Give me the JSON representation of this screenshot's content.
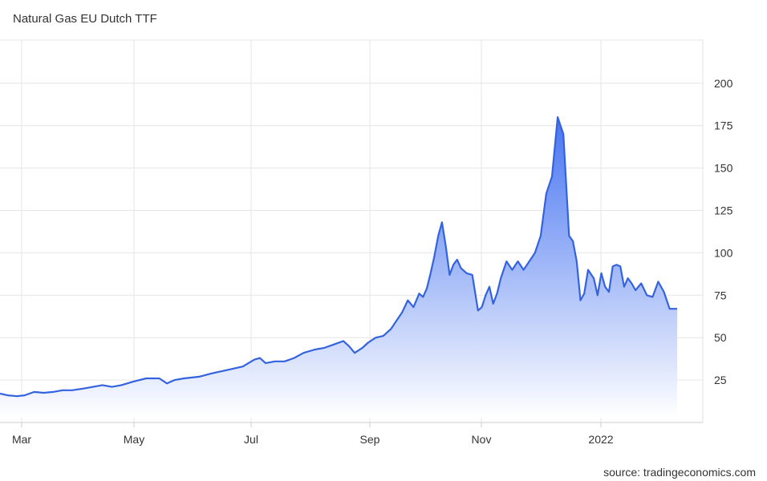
{
  "chart_title": "Natural Gas EU Dutch TTF",
  "source": "source: tradingeconomics.com",
  "colors": {
    "line": "#3463e0",
    "fill_top": "#3f6ef0",
    "fill_bottom": "#ffffff",
    "grid": "#e6e6e6"
  },
  "chart_data": {
    "type": "area",
    "title": "Natural Gas EU Dutch TTF",
    "xlabel": "",
    "ylabel": "",
    "ylim": [
      0,
      225
    ],
    "y_ticks": [
      25,
      50,
      75,
      100,
      125,
      150,
      175,
      200
    ],
    "x_tick_labels": [
      "Mar",
      "May",
      "Jul",
      "Sep",
      "Nov",
      "2022"
    ],
    "x_range": [
      "2021-02-20",
      "2022-02-12"
    ],
    "grid": true,
    "y_axis_side": "right",
    "legend": "none",
    "series": [
      {
        "x": [
          "2021-02-20",
          "2021-02-24",
          "2021-03-01",
          "2021-03-05",
          "2021-03-10",
          "2021-03-15",
          "2021-03-20",
          "2021-03-25",
          "2021-03-30",
          "2021-04-05",
          "2021-04-10",
          "2021-04-15",
          "2021-04-20",
          "2021-04-25",
          "2021-05-01",
          "2021-05-08",
          "2021-05-15",
          "2021-05-19",
          "2021-05-23",
          "2021-05-28",
          "2021-06-05",
          "2021-06-12",
          "2021-06-20",
          "2021-06-28",
          "2021-07-01",
          "2021-07-04",
          "2021-07-07",
          "2021-07-10",
          "2021-07-15",
          "2021-07-20",
          "2021-07-25",
          "2021-07-30",
          "2021-08-05",
          "2021-08-10",
          "2021-08-15",
          "2021-08-20",
          "2021-08-23",
          "2021-08-26",
          "2021-08-30",
          "2021-09-02",
          "2021-09-06",
          "2021-09-10",
          "2021-09-14",
          "2021-09-17",
          "2021-09-20",
          "2021-09-23",
          "2021-09-26",
          "2021-09-29",
          "2021-10-01",
          "2021-10-03",
          "2021-10-05",
          "2021-10-07",
          "2021-10-09",
          "2021-10-11",
          "2021-10-13",
          "2021-10-15",
          "2021-10-17",
          "2021-10-19",
          "2021-10-21",
          "2021-10-24",
          "2021-10-27",
          "2021-10-30",
          "2021-11-01",
          "2021-11-03",
          "2021-11-05",
          "2021-11-07",
          "2021-11-09",
          "2021-11-11",
          "2021-11-14",
          "2021-11-17",
          "2021-11-20",
          "2021-11-23",
          "2021-11-26",
          "2021-11-29",
          "2021-12-02",
          "2021-12-05",
          "2021-12-08",
          "2021-12-11",
          "2021-12-14",
          "2021-12-17",
          "2021-12-19",
          "2021-12-21",
          "2021-12-23",
          "2021-12-25",
          "2021-12-27",
          "2021-12-30",
          "2022-01-01",
          "2022-01-03",
          "2022-01-05",
          "2022-01-07",
          "2022-01-09",
          "2022-01-11",
          "2022-01-13",
          "2022-01-15",
          "2022-01-17",
          "2022-01-19",
          "2022-01-21",
          "2022-01-24",
          "2022-01-27",
          "2022-01-30",
          "2022-02-02",
          "2022-02-05",
          "2022-02-08",
          "2022-02-10",
          "2022-02-12"
        ],
        "y": [
          17,
          16,
          15.5,
          16,
          18,
          17.5,
          18,
          19,
          19,
          20,
          21,
          22,
          21,
          22,
          24,
          26,
          26,
          23,
          25,
          26,
          27,
          29,
          31,
          33,
          35,
          37,
          38,
          35,
          36,
          36,
          38,
          41,
          43,
          44,
          46,
          48,
          45,
          41,
          44,
          47,
          50,
          51,
          55,
          60,
          65,
          72,
          68,
          76,
          74,
          79,
          88,
          98,
          110,
          118,
          104,
          87,
          93,
          96,
          91,
          88,
          87,
          66,
          68,
          75,
          80,
          70,
          76,
          85,
          95,
          90,
          95,
          90,
          95,
          100,
          110,
          135,
          145,
          180,
          170,
          110,
          107,
          95,
          72,
          76,
          90,
          85,
          75,
          88,
          80,
          77,
          92,
          93,
          92,
          80,
          85,
          82,
          78,
          82,
          75,
          74,
          83,
          77,
          67,
          67,
          67
        ]
      }
    ]
  }
}
